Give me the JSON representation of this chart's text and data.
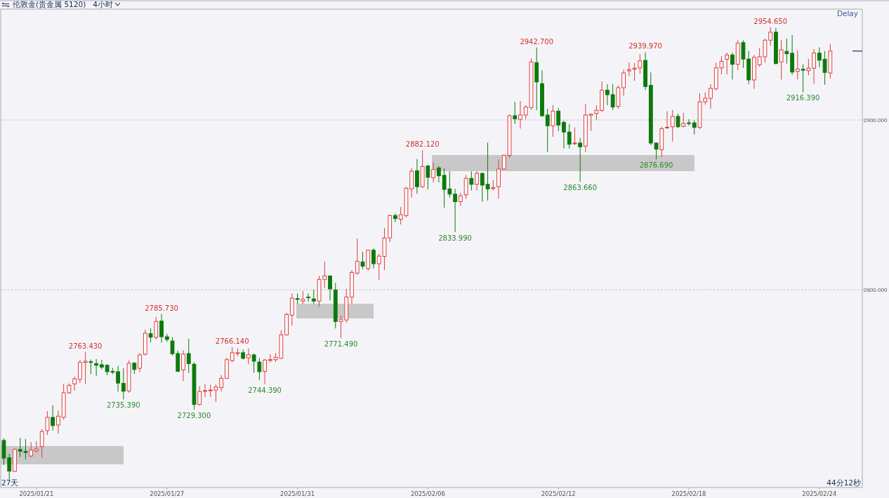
{
  "chart_data": {
    "type": "candlestick",
    "title": "伦敦金(贵金属 5120)",
    "subtitle": "4小时",
    "categories": [
      null,
      null,
      null,
      null,
      null,
      null,
      "2025/01/21",
      null,
      null,
      null,
      null,
      null,
      null,
      null,
      null,
      null,
      null,
      null,
      null,
      null,
      null,
      null,
      null,
      null,
      null,
      null,
      null,
      null,
      null,
      null,
      "2025/01/27",
      null,
      null,
      null,
      null,
      null,
      null,
      null,
      null,
      null,
      null,
      null,
      null,
      null,
      null,
      null,
      null,
      null,
      null,
      null,
      null,
      null,
      null,
      null,
      "2025/01/31",
      null,
      null,
      null,
      null,
      null,
      null,
      null,
      null,
      null,
      null,
      null,
      null,
      null,
      null,
      null,
      null,
      null,
      null,
      null,
      null,
      null,
      null,
      null,
      "2025/02/06",
      null,
      null,
      null,
      null,
      null,
      null,
      null,
      null,
      null,
      null,
      null,
      null,
      null,
      null,
      null,
      null,
      null,
      null,
      null,
      null,
      null,
      null,
      null,
      "2025/02/12",
      null,
      null,
      null,
      null,
      null,
      null,
      null,
      null,
      null,
      null,
      null,
      null,
      null,
      null,
      null,
      null,
      null,
      null,
      null,
      null,
      null,
      null,
      null,
      "2025/02/18",
      null,
      null,
      null,
      null,
      null,
      null,
      null,
      null,
      null,
      null,
      null,
      null,
      null,
      null,
      null,
      null,
      null,
      null,
      null,
      null,
      null,
      null,
      null,
      "2025/02/24",
      null,
      null
    ],
    "ohlc": [
      [
        2711.2,
        2712.4,
        2696.7,
        2700.8
      ],
      [
        2701.0,
        2703.4,
        2688.3,
        2693.1
      ],
      [
        2693.0,
        2706.6,
        2692.6,
        2705.9
      ],
      [
        2705.9,
        2712.8,
        2701.4,
        2704.8
      ],
      [
        2704.8,
        2712.0,
        2700.0,
        2704.1
      ],
      [
        2702.1,
        2710.3,
        2701.4,
        2705.5
      ],
      [
        2705.1,
        2710.8,
        2704.1,
        2706.2
      ],
      [
        2707.6,
        2717.9,
        2701.0,
        2716.5
      ],
      [
        2717.0,
        2728.5,
        2714.5,
        2724.8
      ],
      [
        2724.8,
        2732.0,
        2717.0,
        2720.0
      ],
      [
        2720.3,
        2728.9,
        2715.2,
        2725.5
      ],
      [
        2724.8,
        2744.5,
        2723.4,
        2739.3
      ],
      [
        2739.3,
        2744.8,
        2738.6,
        2743.7
      ],
      [
        2744.5,
        2748.9,
        2740.6,
        2747.5
      ],
      [
        2747.2,
        2758.8,
        2745.0,
        2757.2
      ],
      [
        2757.2,
        2763.43,
        2744.5,
        2757.9
      ],
      [
        2757.6,
        2758.8,
        2750.3,
        2757.2
      ],
      [
        2756.5,
        2759.2,
        2749.2,
        2755.5
      ],
      [
        2755.8,
        2758.6,
        2753.0,
        2754.4
      ],
      [
        2755.5,
        2756.1,
        2749.6,
        2751.7
      ],
      [
        2751.9,
        2754.0,
        2750.3,
        2751.4
      ],
      [
        2751.7,
        2755.1,
        2740.0,
        2745.0
      ],
      [
        2744.8,
        2753.7,
        2735.39,
        2740.2
      ],
      [
        2740.4,
        2758.3,
        2739.3,
        2756.7
      ],
      [
        2756.7,
        2757.4,
        2750.3,
        2753.0
      ],
      [
        2753.7,
        2762.7,
        2751.4,
        2761.6
      ],
      [
        2762.0,
        2776.5,
        2761.3,
        2774.4
      ],
      [
        2774.1,
        2777.2,
        2768.9,
        2772.0
      ],
      [
        2772.0,
        2784.0,
        2770.7,
        2781.3
      ],
      [
        2781.5,
        2785.73,
        2768.9,
        2772.3
      ],
      [
        2772.3,
        2774.0,
        2769.3,
        2770.7
      ],
      [
        2769.8,
        2772.0,
        2761.3,
        2762.3
      ],
      [
        2762.4,
        2764.1,
        2751.7,
        2751.9
      ],
      [
        2752.8,
        2764.3,
        2746.2,
        2762.0
      ],
      [
        2762.4,
        2771.2,
        2751.0,
        2756.5
      ],
      [
        2756.1,
        2757.2,
        2729.3,
        2732.4
      ],
      [
        2732.4,
        2743.1,
        2731.7,
        2740.0
      ],
      [
        2740.4,
        2744.5,
        2736.8,
        2740.6
      ],
      [
        2740.6,
        2744.1,
        2736.8,
        2740.9
      ],
      [
        2740.9,
        2744.1,
        2733.8,
        2742.7
      ],
      [
        2742.3,
        2749.6,
        2740.0,
        2747.8
      ],
      [
        2747.8,
        2759.9,
        2747.5,
        2758.8
      ],
      [
        2758.3,
        2766.14,
        2757.2,
        2762.9
      ],
      [
        2762.4,
        2765.4,
        2761.0,
        2762.9
      ],
      [
        2762.9,
        2764.8,
        2758.8,
        2759.6
      ],
      [
        2759.9,
        2765.4,
        2756.1,
        2761.7
      ],
      [
        2761.6,
        2762.4,
        2751.0,
        2757.9
      ],
      [
        2757.4,
        2759.9,
        2746.8,
        2751.7
      ],
      [
        2751.9,
        2759.2,
        2744.39,
        2758.6
      ],
      [
        2758.6,
        2762.0,
        2757.2,
        2758.8
      ],
      [
        2758.8,
        2762.7,
        2757.4,
        2760.2
      ],
      [
        2759.6,
        2776.2,
        2759.2,
        2773.4
      ],
      [
        2773.4,
        2786.4,
        2773.0,
        2785.4
      ],
      [
        2785.0,
        2797.8,
        2778.9,
        2795.0
      ],
      [
        2794.8,
        2797.8,
        2791.6,
        2794.3
      ],
      [
        2793.3,
        2799.2,
        2791.6,
        2794.3
      ],
      [
        2795.7,
        2797.8,
        2793.0,
        2795.5
      ],
      [
        2794.6,
        2800.1,
        2791.6,
        2793.3
      ],
      [
        2793.3,
        2808.1,
        2790.0,
        2806.1
      ],
      [
        2806.1,
        2816.7,
        2801.2,
        2808.1
      ],
      [
        2808.1,
        2808.4,
        2793.7,
        2800.5
      ],
      [
        2799.9,
        2804.0,
        2777.2,
        2781.3
      ],
      [
        2781.3,
        2784.7,
        2771.49,
        2782.6
      ],
      [
        2782.2,
        2800.5,
        2780.6,
        2795.7
      ],
      [
        2795.7,
        2811.6,
        2791.6,
        2810.2
      ],
      [
        2809.8,
        2830.2,
        2808.8,
        2816.7
      ],
      [
        2816.4,
        2822.2,
        2812.0,
        2813.9
      ],
      [
        2812.5,
        2823.6,
        2811.2,
        2823.3
      ],
      [
        2823.3,
        2824.4,
        2812.5,
        2815.3
      ],
      [
        2815.3,
        2821.2,
        2805.7,
        2819.8
      ],
      [
        2819.6,
        2836.4,
        2811.6,
        2830.5
      ],
      [
        2830.5,
        2844.2,
        2828.1,
        2843.7
      ],
      [
        2843.7,
        2845.0,
        2839.8,
        2841.9
      ],
      [
        2841.5,
        2848.8,
        2838.4,
        2844.2
      ],
      [
        2843.7,
        2860.5,
        2842.6,
        2859.8
      ],
      [
        2859.4,
        2871.5,
        2854.3,
        2869.8
      ],
      [
        2870.1,
        2877.0,
        2856.6,
        2860.7
      ],
      [
        2860.7,
        2882.12,
        2859.8,
        2872.6
      ],
      [
        2872.9,
        2873.6,
        2859.1,
        2866.2
      ],
      [
        2866.0,
        2874.9,
        2863.2,
        2870.8
      ],
      [
        2871.8,
        2872.9,
        2863.2,
        2867.1
      ],
      [
        2867.4,
        2871.5,
        2848.3,
        2859.1
      ],
      [
        2859.4,
        2869.8,
        2854.3,
        2856.3
      ],
      [
        2856.3,
        2859.4,
        2833.99,
        2851.9
      ],
      [
        2851.9,
        2857.0,
        2849.5,
        2855.3
      ],
      [
        2855.9,
        2867.6,
        2853.6,
        2865.6
      ],
      [
        2865.6,
        2869.8,
        2858.4,
        2862.1
      ],
      [
        2862.1,
        2869.8,
        2858.4,
        2868.5
      ],
      [
        2868.5,
        2869.0,
        2851.9,
        2861.6
      ],
      [
        2862.1,
        2886.7,
        2852.5,
        2859.4
      ],
      [
        2859.6,
        2864.6,
        2858.4,
        2860.2
      ],
      [
        2860.7,
        2876.7,
        2853.6,
        2871.1
      ],
      [
        2871.1,
        2879.8,
        2870.8,
        2879.1
      ],
      [
        2879.1,
        2903.2,
        2877.7,
        2902.5
      ],
      [
        2902.5,
        2910.7,
        2897.6,
        2900.7
      ],
      [
        2900.4,
        2911.2,
        2894.9,
        2902.9
      ],
      [
        2902.9,
        2908.7,
        2900.4,
        2907.6
      ],
      [
        2907.3,
        2936.2,
        2905.9,
        2934.2
      ],
      [
        2933.8,
        2942.7,
        2905.7,
        2922.4
      ],
      [
        2921.4,
        2929.3,
        2901.8,
        2902.5
      ],
      [
        2902.9,
        2906.6,
        2881.1,
        2896.6
      ],
      [
        2896.6,
        2908.7,
        2890.1,
        2905.2
      ],
      [
        2905.2,
        2907.0,
        2893.5,
        2897.0
      ],
      [
        2898.6,
        2899.7,
        2883.2,
        2892.9
      ],
      [
        2892.9,
        2897.6,
        2883.2,
        2885.7
      ],
      [
        2886.2,
        2895.6,
        2885.2,
        2886.4
      ],
      [
        2886.4,
        2889.4,
        2863.66,
        2884.2
      ],
      [
        2884.6,
        2909.4,
        2881.1,
        2902.9
      ],
      [
        2902.8,
        2903.8,
        2893.5,
        2903.4
      ],
      [
        2903.8,
        2908.7,
        2900.1,
        2905.7
      ],
      [
        2905.7,
        2922.7,
        2904.5,
        2917.6
      ],
      [
        2917.6,
        2921.1,
        2908.7,
        2914.9
      ],
      [
        2914.9,
        2921.1,
        2905.9,
        2907.6
      ],
      [
        2908.0,
        2920.4,
        2906.6,
        2919.0
      ],
      [
        2919.0,
        2929.6,
        2914.2,
        2927.7
      ],
      [
        2928.9,
        2933.8,
        2925.9,
        2929.6
      ],
      [
        2929.9,
        2933.5,
        2923.1,
        2930.5
      ],
      [
        2930.7,
        2938.7,
        2927.3,
        2934.8
      ],
      [
        2935.1,
        2939.97,
        2917.6,
        2919.7
      ],
      [
        2920.4,
        2928.0,
        2885.2,
        2886.4
      ],
      [
        2886.4,
        2886.7,
        2876.69,
        2882.8
      ],
      [
        2882.5,
        2896.0,
        2878.1,
        2894.9
      ],
      [
        2895.3,
        2905.2,
        2894.9,
        2895.7
      ],
      [
        2896.0,
        2905.9,
        2887.3,
        2902.1
      ],
      [
        2902.1,
        2903.8,
        2895.2,
        2896.0
      ],
      [
        2896.3,
        2904.3,
        2895.5,
        2897.9
      ],
      [
        2898.3,
        2900.4,
        2896.6,
        2897.9
      ],
      [
        2898.3,
        2899.7,
        2891.4,
        2895.6
      ],
      [
        2895.6,
        2915.8,
        2894.6,
        2910.7
      ],
      [
        2910.7,
        2916.2,
        2909.0,
        2912.8
      ],
      [
        2912.8,
        2921.1,
        2906.6,
        2918.6
      ],
      [
        2918.3,
        2933.8,
        2917.6,
        2930.7
      ],
      [
        2930.7,
        2937.6,
        2926.9,
        2934.6
      ],
      [
        2935.8,
        2939.7,
        2926.9,
        2938.3
      ],
      [
        2938.3,
        2939.7,
        2923.8,
        2932.8
      ],
      [
        2932.8,
        2947.0,
        2929.3,
        2945.2
      ],
      [
        2945.6,
        2947.0,
        2930.7,
        2935.9
      ],
      [
        2935.9,
        2940.6,
        2921.1,
        2923.6
      ],
      [
        2923.6,
        2938.3,
        2918.3,
        2936.9
      ],
      [
        2932.5,
        2942.4,
        2931.4,
        2937.2
      ],
      [
        2937.2,
        2947.9,
        2933.8,
        2947.0
      ],
      [
        2947.0,
        2954.65,
        2943.8,
        2951.7
      ],
      [
        2951.7,
        2954.2,
        2932.8,
        2933.2
      ],
      [
        2934.2,
        2947.0,
        2923.8,
        2941.3
      ],
      [
        2940.4,
        2947.9,
        2933.2,
        2939.0
      ],
      [
        2939.3,
        2950.0,
        2926.6,
        2928.2
      ],
      [
        2928.6,
        2941.0,
        2923.8,
        2930.0
      ],
      [
        2929.9,
        2932.8,
        2916.39,
        2929.3
      ],
      [
        2929.0,
        2935.9,
        2926.3,
        2930.5
      ],
      [
        2930.5,
        2941.7,
        2921.4,
        2939.4
      ],
      [
        2939.4,
        2942.8,
        2931.1,
        2935.2
      ],
      [
        2935.8,
        2940.6,
        2920.8,
        2928.0
      ],
      [
        2927.7,
        2944.8,
        2924.5,
        2940.6
      ]
    ],
    "ylim": [
      2683.5,
      2965.3
    ],
    "yticks": [
      {
        "value": 2800,
        "label": "2800.000"
      },
      {
        "value": 2900,
        "label": "2900.000"
      }
    ],
    "grid": "y",
    "annotations": [
      "Delay",
      "27天",
      "44分12秒",
      {
        "text": "2763.430",
        "y": 2763.43
      },
      {
        "text": "2735.390",
        "y": 2735.39
      },
      {
        "text": "2785.730",
        "y": 2785.73
      },
      {
        "text": "2729.300",
        "y": 2729.3
      },
      {
        "text": "2766.140",
        "y": 2766.14
      },
      {
        "text": "2744.390",
        "y": 2744.39
      },
      {
        "text": "2771.490",
        "y": 2771.49
      },
      {
        "text": "2882.120",
        "y": 2882.12
      },
      {
        "text": "2833.990",
        "y": 2833.99
      },
      {
        "text": "2942.700",
        "y": 2942.7
      },
      {
        "text": "2863.660",
        "y": 2863.66
      },
      {
        "text": "2939.970",
        "y": 2939.97
      },
      {
        "text": "2876.690",
        "y": 2876.69
      },
      {
        "text": "2954.650",
        "y": 2954.65
      },
      {
        "text": "2916.390",
        "y": 2916.39
      }
    ]
  }
}
